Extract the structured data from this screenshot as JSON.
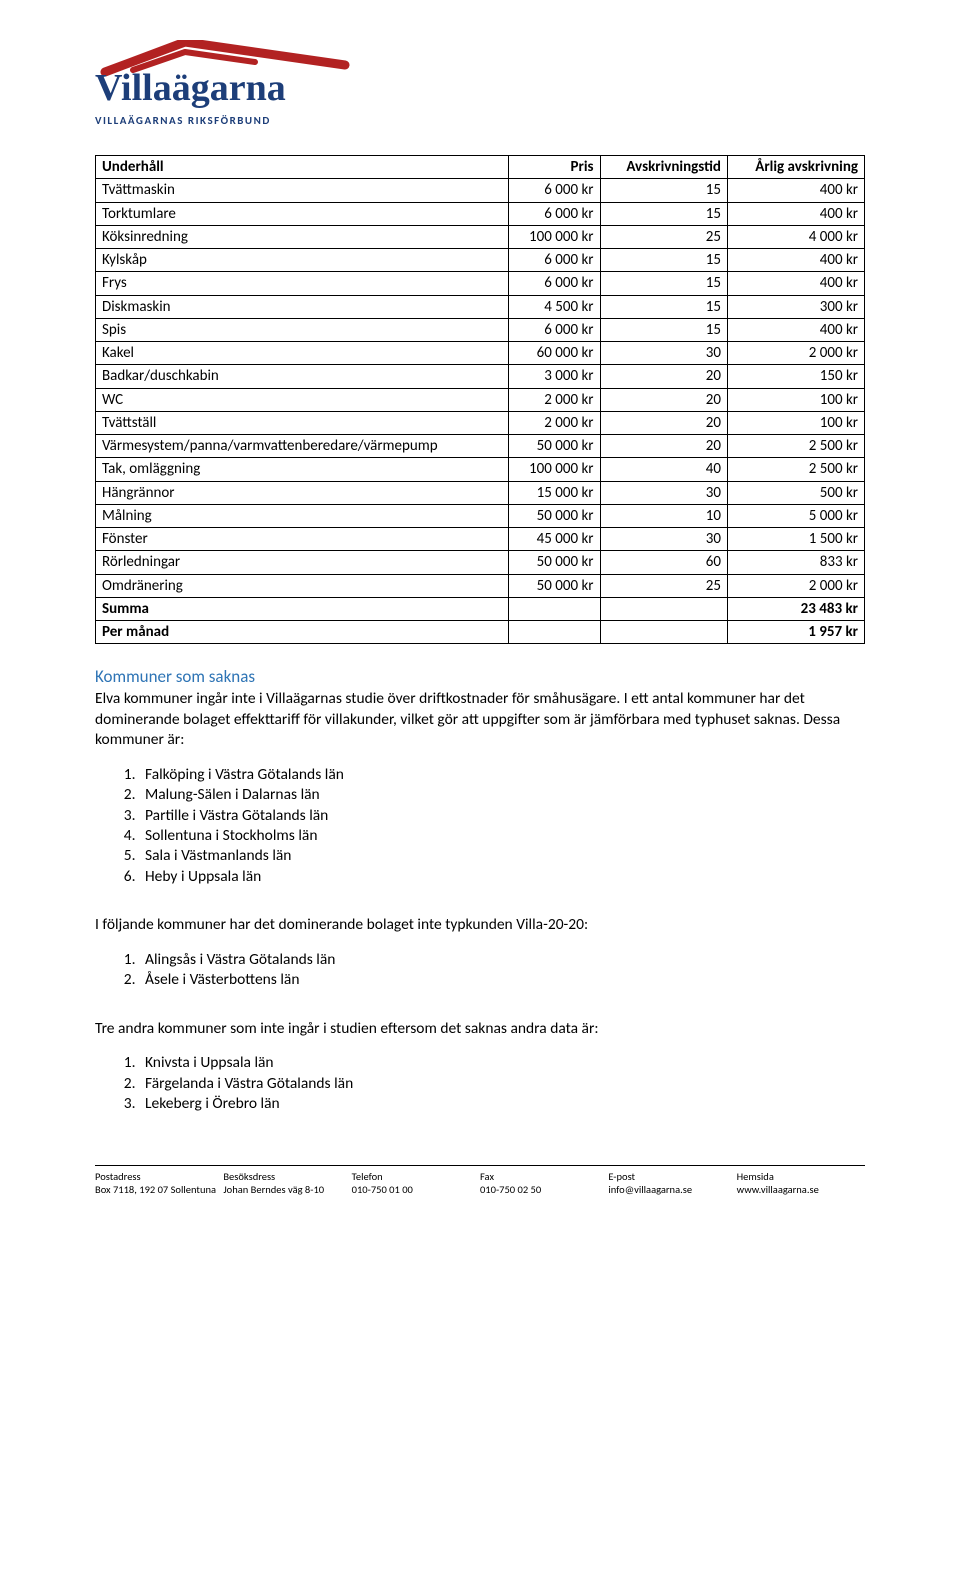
{
  "logo": {
    "title": "Villaägarna",
    "tagline": "VILLAÄGARNAS RIKSFÖRBUND",
    "roof_color": "#b22222",
    "text_color": "#1d3e79"
  },
  "table": {
    "headers": [
      "Underhåll",
      "Pris",
      "Avskrivningstid",
      "Årlig avskrivning"
    ],
    "rows": [
      {
        "n": "Tvättmaskin",
        "p": "6 000 kr",
        "a": "15",
        "y": "400 kr"
      },
      {
        "n": "Torktumlare",
        "p": "6 000 kr",
        "a": "15",
        "y": "400 kr"
      },
      {
        "n": "Köksinredning",
        "p": "100 000 kr",
        "a": "25",
        "y": "4 000 kr"
      },
      {
        "n": "Kylskåp",
        "p": "6 000 kr",
        "a": "15",
        "y": "400 kr"
      },
      {
        "n": "Frys",
        "p": "6 000 kr",
        "a": "15",
        "y": "400 kr"
      },
      {
        "n": "Diskmaskin",
        "p": "4 500 kr",
        "a": "15",
        "y": "300 kr"
      },
      {
        "n": "Spis",
        "p": "6 000 kr",
        "a": "15",
        "y": "400 kr"
      },
      {
        "n": "Kakel",
        "p": "60 000 kr",
        "a": "30",
        "y": "2 000 kr"
      },
      {
        "n": "Badkar/duschkabin",
        "p": "3 000 kr",
        "a": "20",
        "y": "150 kr"
      },
      {
        "n": "WC",
        "p": "2 000 kr",
        "a": "20",
        "y": "100 kr"
      },
      {
        "n": "Tvättställ",
        "p": "2 000 kr",
        "a": "20",
        "y": "100 kr"
      },
      {
        "n": "Värmesystem/panna/varmvattenberedare/värmepump",
        "p": "50 000 kr",
        "a": "20",
        "y": "2 500 kr"
      },
      {
        "n": "Tak, omläggning",
        "p": "100 000 kr",
        "a": "40",
        "y": "2 500 kr"
      },
      {
        "n": "Hängrännor",
        "p": "15 000 kr",
        "a": "30",
        "y": "500 kr"
      },
      {
        "n": "Målning",
        "p": "50 000 kr",
        "a": "10",
        "y": "5 000 kr"
      },
      {
        "n": "Fönster",
        "p": "45 000 kr",
        "a": "30",
        "y": "1 500 kr"
      },
      {
        "n": "Rörledningar",
        "p": "50 000 kr",
        "a": "60",
        "y": "833 kr"
      },
      {
        "n": "Omdränering",
        "p": "50 000 kr",
        "a": "25",
        "y": "2 000 kr"
      }
    ],
    "summary": [
      {
        "label": "Summa",
        "value": "23 483 kr"
      },
      {
        "label": "Per månad",
        "value": "1 957 kr"
      }
    ]
  },
  "missing": {
    "heading": "Kommuner som saknas",
    "intro": "Elva kommuner ingår inte i Villaägarnas studie över driftkostnader för småhusägare. I ett antal kommuner har det dominerande bolaget effekttariff för villakunder, vilket gör att uppgifter som är jämförbara med typhuset saknas. Dessa kommuner är:",
    "list1": [
      "Falköping i Västra Götalands län",
      "Malung-Sälen i Dalarnas län",
      "Partille i Västra Götalands län",
      "Sollentuna i Stockholms län",
      "Sala i Västmanlands län",
      "Heby i Uppsala län"
    ],
    "para2": "I följande kommuner har det dominerande bolaget inte typkunden Villa-20-20:",
    "list2": [
      "Alingsås i Västra Götalands län",
      "Åsele i Västerbottens län"
    ],
    "para3": "Tre andra kommuner som inte ingår i studien eftersom det saknas andra data är:",
    "list3": [
      "Knivsta i Uppsala län",
      "Färgelanda i Västra Götalands län",
      "Lekeberg i Örebro län"
    ]
  },
  "footer": {
    "cols": [
      {
        "hdr": "Postadress",
        "v1": "Box 7118, 192 07 Sollentuna",
        "v2": ""
      },
      {
        "hdr": "Besöksdress",
        "v1": "Johan Berndes väg 8-10",
        "v2": ""
      },
      {
        "hdr": "Telefon",
        "v1": "010-750 01 00",
        "v2": ""
      },
      {
        "hdr": "Fax",
        "v1": "010-750 02 50",
        "v2": ""
      },
      {
        "hdr": "E-post",
        "v1": "info@villaagarna.se",
        "v2": ""
      },
      {
        "hdr": "Hemsida",
        "v1": "www.villaagarna.se",
        "v2": ""
      }
    ]
  }
}
